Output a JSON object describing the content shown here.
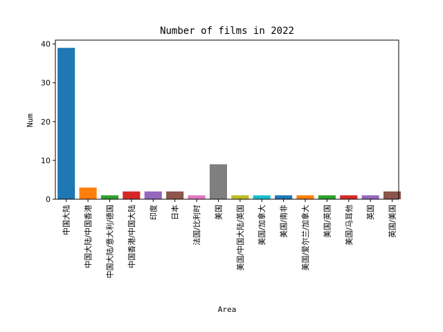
{
  "chart_data": {
    "type": "bar",
    "title": "Number of films in 2022",
    "xlabel": "Area",
    "ylabel": "Num",
    "ylim": [
      0,
      41
    ],
    "yticks": [
      0,
      10,
      20,
      30,
      40
    ],
    "grid": false,
    "categories": [
      "中国大陆",
      "中国大陆/中国香港",
      "中国大陆/意大利/德国",
      "中国香港/中国大陆",
      "印度",
      "日本",
      "法国/比利时",
      "美国",
      "美国/中国大陆/英国",
      "美国/加拿大",
      "美国/南非",
      "美国/爱尔兰/加拿大",
      "美国/英国",
      "美国/马耳他",
      "英国",
      "英国/美国"
    ],
    "values": [
      39,
      3,
      1,
      2,
      2,
      2,
      1,
      9,
      1,
      1,
      1,
      1,
      1,
      1,
      1,
      2
    ],
    "colors": [
      "#1f77b4",
      "#ff7f0e",
      "#2ca02c",
      "#d62728",
      "#9467bd",
      "#8c564b",
      "#e377c2",
      "#7f7f7f",
      "#bcbd22",
      "#17becf",
      "#1f77b4",
      "#ff7f0e",
      "#2ca02c",
      "#d62728",
      "#9467bd",
      "#8c564b"
    ]
  }
}
